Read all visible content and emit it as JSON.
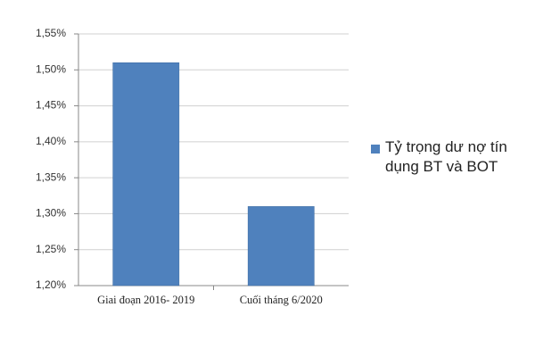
{
  "chart_data": {
    "type": "bar",
    "categories": [
      "Giai đoạn 2016- 2019",
      "Cuối tháng 6/2020"
    ],
    "series": [
      {
        "name": "Tỷ trọng dư nợ tín dụng BT và BOT",
        "color": "#4f81bd",
        "values": [
          1.51,
          1.31
        ]
      }
    ],
    "ylim": [
      1.2,
      1.55
    ],
    "yticks": [
      {
        "value": 1.2,
        "label": "1,20%"
      },
      {
        "value": 1.25,
        "label": "1,25%"
      },
      {
        "value": 1.3,
        "label": "1,30%"
      },
      {
        "value": 1.35,
        "label": "1,35%"
      },
      {
        "value": 1.4,
        "label": "1,40%"
      },
      {
        "value": 1.45,
        "label": "1,45%"
      },
      {
        "value": 1.5,
        "label": "1,50%"
      },
      {
        "value": 1.55,
        "label": "1,55%"
      }
    ],
    "grid": true,
    "legend": "right"
  }
}
